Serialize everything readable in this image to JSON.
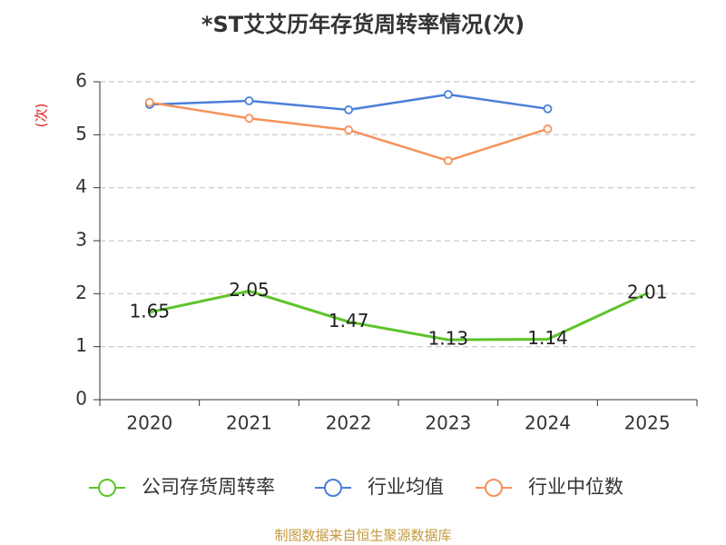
{
  "footer": "制图数据来自恒生聚源数据库",
  "chart_data": {
    "type": "line",
    "title": "*ST艾艾历年存货周转率情况(次)",
    "xlabel": "",
    "ylabel": "(次)",
    "categories": [
      "2020",
      "2021",
      "2022",
      "2023",
      "2024",
      "2025"
    ],
    "ylim": [
      0,
      6
    ],
    "yticks": [
      0,
      1,
      2,
      3,
      4,
      5,
      6
    ],
    "grid": true,
    "legend": "bottom",
    "series": [
      {
        "name": "公司存货周转率",
        "color": "#5ec42b",
        "values": [
          1.65,
          2.05,
          1.47,
          1.13,
          1.14,
          2.01
        ],
        "labels": [
          "1.65",
          "2.05",
          "1.47",
          "1.13",
          "1.14",
          "2.01"
        ],
        "markers": false
      },
      {
        "name": "行业均值",
        "color": "#4a7fd8",
        "values": [
          5.57,
          5.64,
          5.47,
          5.76,
          5.49,
          null
        ],
        "markers": true
      },
      {
        "name": "行业中位数",
        "color": "#f5925b",
        "values": [
          5.61,
          5.31,
          5.09,
          4.51,
          5.11,
          null
        ],
        "markers": true
      }
    ]
  }
}
